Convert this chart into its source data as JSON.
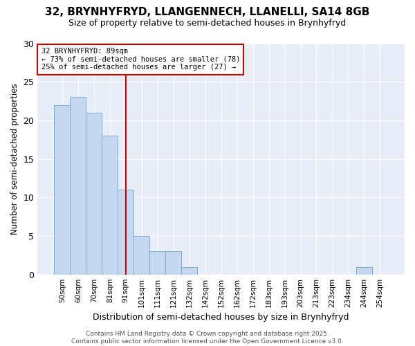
{
  "title1": "32, BRYNHYFRYD, LLANGENNECH, LLANELLI, SA14 8GB",
  "title2": "Size of property relative to semi-detached houses in Brynhyfryd",
  "xlabel": "Distribution of semi-detached houses by size in Brynhyfryd",
  "ylabel": "Number of semi-detached properties",
  "categories": [
    "50sqm",
    "60sqm",
    "70sqm",
    "81sqm",
    "91sqm",
    "101sqm",
    "111sqm",
    "121sqm",
    "132sqm",
    "142sqm",
    "152sqm",
    "162sqm",
    "172sqm",
    "183sqm",
    "193sqm",
    "203sqm",
    "213sqm",
    "223sqm",
    "234sqm",
    "244sqm",
    "254sqm"
  ],
  "values": [
    22,
    23,
    21,
    18,
    11,
    5,
    3,
    3,
    1,
    0,
    0,
    0,
    0,
    0,
    0,
    0,
    0,
    0,
    0,
    1,
    0
  ],
  "bar_color": "#c5d8f0",
  "bar_edge_color": "#7baed4",
  "vline_index": 4,
  "vline_color": "#cc0000",
  "annotation_line1": "32 BRYNHYFRYD: 89sqm",
  "annotation_line2": "← 73% of semi-detached houses are smaller (78)",
  "annotation_line3": "25% of semi-detached houses are larger (27) →",
  "annotation_box_edgecolor": "#cc0000",
  "footer": "Contains HM Land Registry data © Crown copyright and database right 2025.\nContains public sector information licensed under the Open Government Licence v3.0.",
  "ylim": [
    0,
    30
  ],
  "plot_bg_color": "#e8eef8",
  "fig_bg_color": "#ffffff",
  "grid_color": "#ffffff",
  "title1_fontsize": 11,
  "title2_fontsize": 9
}
